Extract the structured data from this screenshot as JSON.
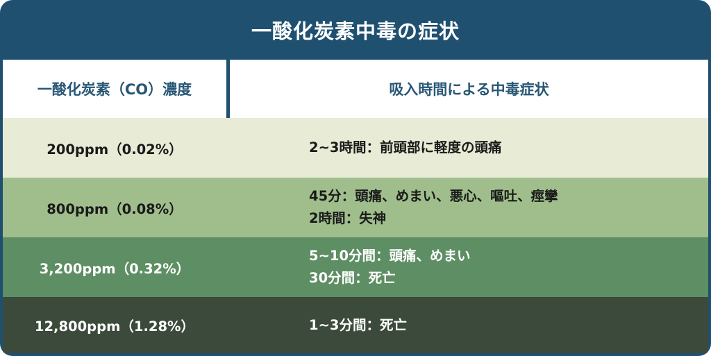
{
  "title": "一酸化炭素中毒の症状",
  "colors": {
    "frame": "#1f5070",
    "header_text": "#285775",
    "row1": "#e8ebd5",
    "row2": "#9fbe8c",
    "row3": "#5e8e64",
    "row4": "#3b4a3a"
  },
  "headers": {
    "concentration": "一酸化炭素（CO）濃度",
    "symptoms": "吸入時間による中毒症状"
  },
  "rows": [
    {
      "concentration": "200ppm（0.02%）",
      "lines": [
        "2~3時間：前頭部に軽度の頭痛"
      ]
    },
    {
      "concentration": "800ppm（0.08%）",
      "lines": [
        "45分：頭痛、めまい、悪心、嘔吐、痙攣",
        "2時間：失神"
      ]
    },
    {
      "concentration": "3,200ppm（0.32%）",
      "lines": [
        "5~10分間：頭痛、めまい",
        "30分間：死亡"
      ]
    },
    {
      "concentration": "12,800ppm（1.28%）",
      "lines": [
        "1~3分間：死亡"
      ]
    }
  ]
}
